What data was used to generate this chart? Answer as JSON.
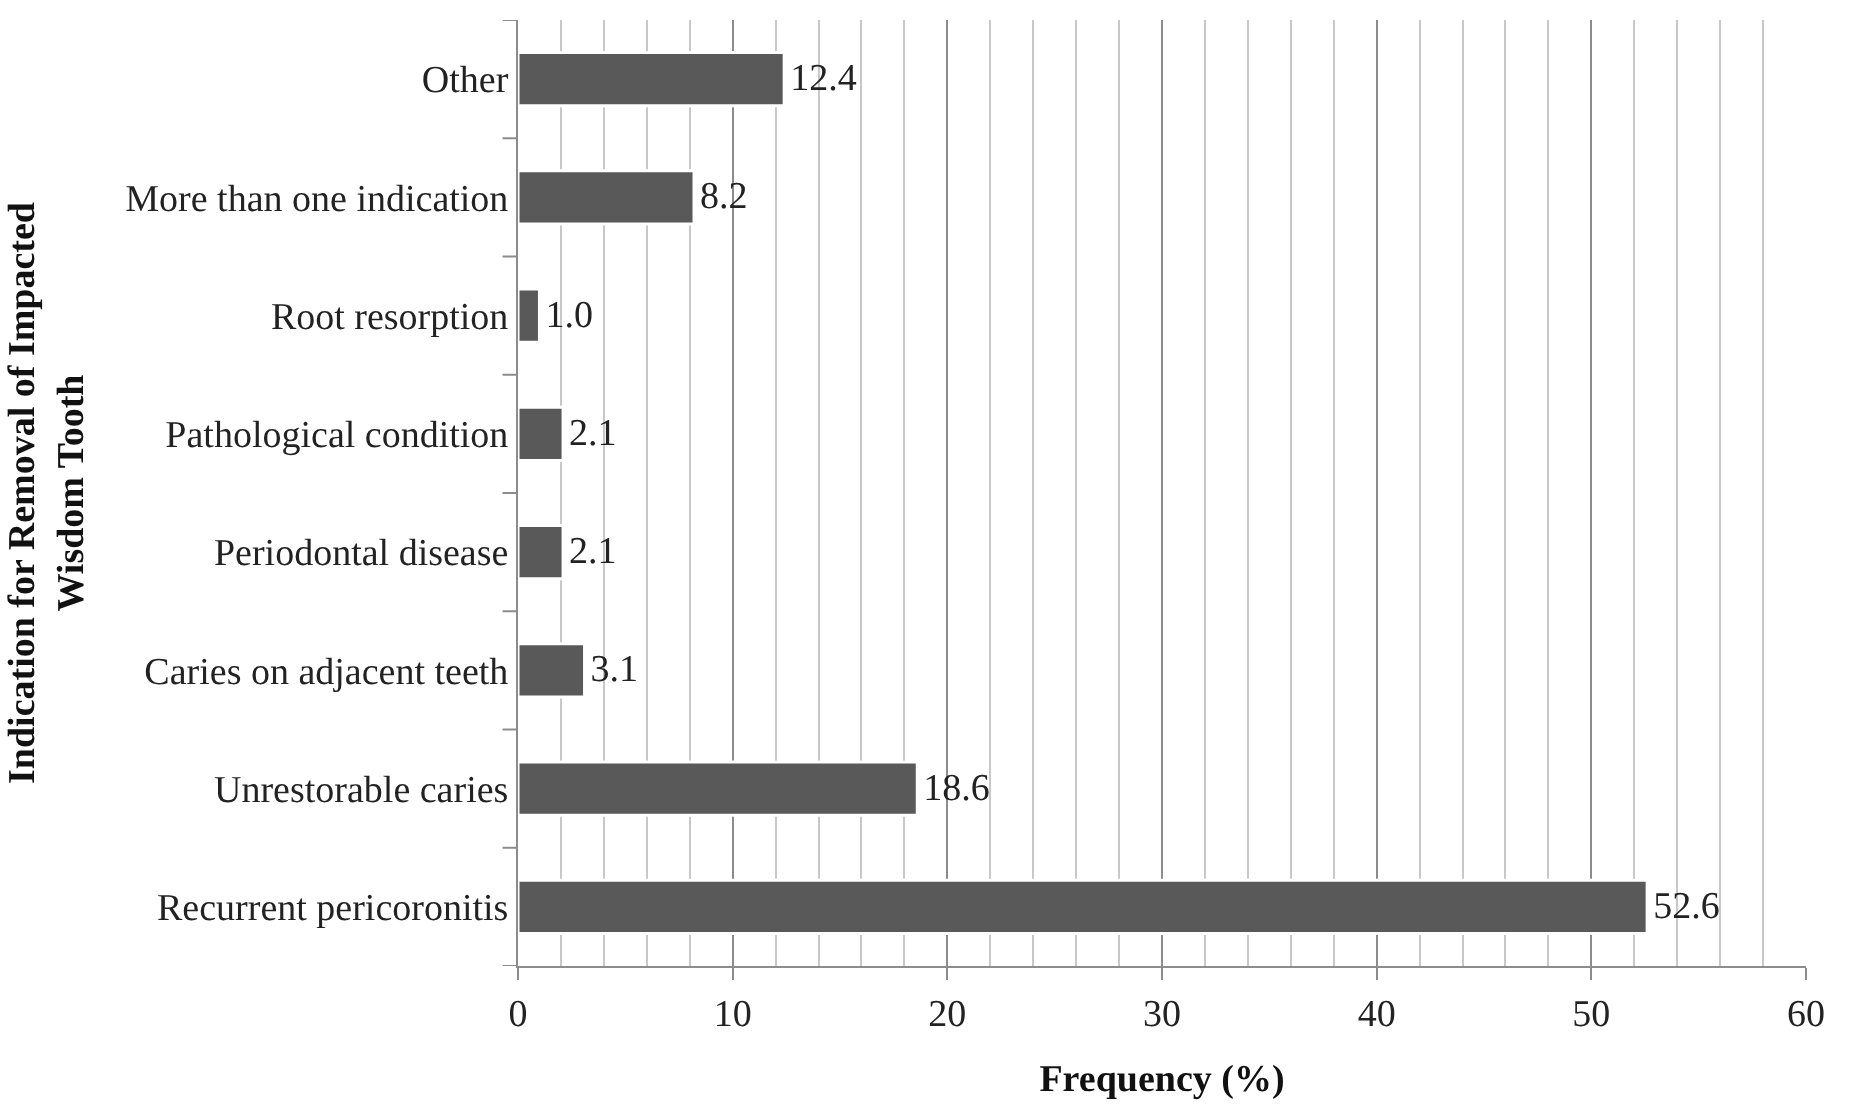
{
  "chart_data": {
    "type": "bar",
    "orientation": "horizontal",
    "xlabel": "Frequency (%)",
    "ylabel": "Indication for Removal of Impacted\nWisdom Tooth",
    "categories": [
      "Other",
      "More than one indication",
      "Root resorption",
      "Pathological condition",
      "Periodontal disease",
      "Caries on adjacent teeth",
      "Unrestorable caries",
      "Recurrent pericoronitis"
    ],
    "values": [
      12.4,
      8.2,
      1.0,
      2.1,
      2.1,
      3.1,
      18.6,
      52.6
    ],
    "value_labels": [
      "12.4",
      "8.2",
      "1.0",
      "2.1",
      "2.1",
      "3.1",
      "18.6",
      "52.6"
    ],
    "color": "#595959",
    "grid": "x",
    "xlim": [
      0,
      60
    ],
    "xticks": [
      0,
      10,
      20,
      30,
      40,
      50,
      60
    ]
  }
}
